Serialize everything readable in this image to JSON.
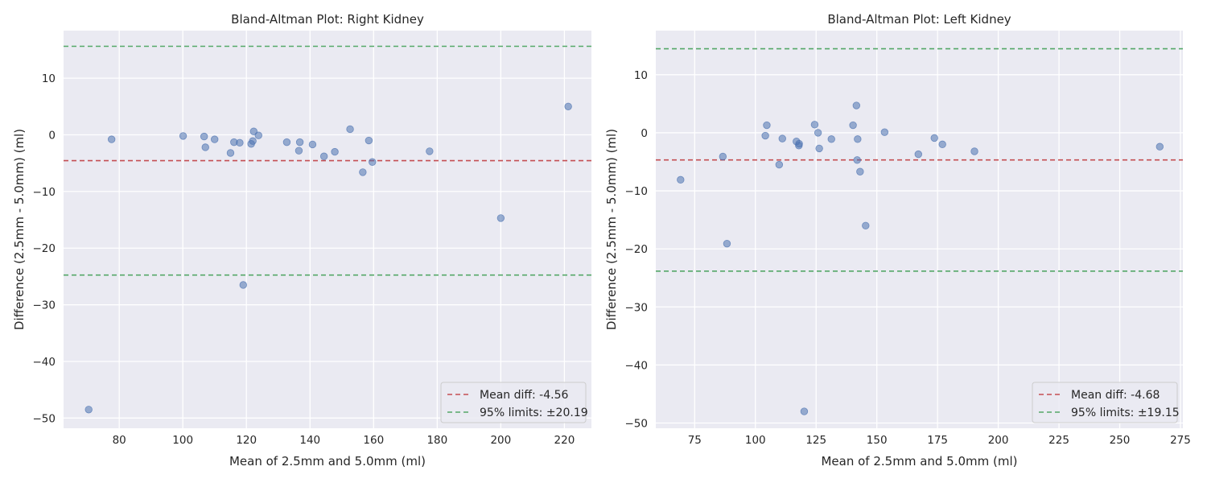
{
  "chart_data": [
    {
      "type": "scatter",
      "title": "Bland-Altman Plot: Right Kidney",
      "xlabel": "Mean of 2.5mm and 5.0mm (ml)",
      "ylabel": "Difference (2.5mm - 5.0mm) (ml)",
      "xlim": [
        62.5,
        228.5
      ],
      "ylim": [
        -51.8,
        18.4
      ],
      "xticks": [
        80,
        100,
        120,
        140,
        160,
        180,
        200,
        220
      ],
      "yticks": [
        -50,
        -40,
        -30,
        -20,
        -10,
        0,
        10
      ],
      "grid": true,
      "legend_position": "lower-right",
      "colors": {
        "points": "#4c72b0",
        "mean": "#c44e52",
        "limits": "#55a868",
        "background": "#eaeaf2",
        "grid": "#ffffff"
      },
      "mean_diff": -4.56,
      "upper_limit": 15.63,
      "lower_limit": -24.75,
      "legend": [
        "Mean diff: -4.56",
        "95% limits: ±20.19"
      ],
      "points": [
        [
          70.4,
          -48.5
        ],
        [
          77.6,
          -0.8
        ],
        [
          100.1,
          -0.2
        ],
        [
          106.7,
          -0.3
        ],
        [
          107.1,
          -2.2
        ],
        [
          110.0,
          -0.8
        ],
        [
          115.0,
          -3.2
        ],
        [
          116.1,
          -1.3
        ],
        [
          117.9,
          -1.4
        ],
        [
          119.0,
          -26.5
        ],
        [
          121.5,
          -1.6
        ],
        [
          122.0,
          -1.1
        ],
        [
          122.3,
          0.6
        ],
        [
          123.8,
          -0.1
        ],
        [
          132.7,
          -1.3
        ],
        [
          136.5,
          -2.8
        ],
        [
          136.8,
          -1.3
        ],
        [
          140.8,
          -1.7
        ],
        [
          144.4,
          -3.8
        ],
        [
          147.8,
          -3.0
        ],
        [
          152.6,
          1.0
        ],
        [
          156.6,
          -6.6
        ],
        [
          158.5,
          -1.0
        ],
        [
          159.6,
          -4.8
        ],
        [
          177.6,
          -2.9
        ],
        [
          200.0,
          -14.7
        ],
        [
          221.2,
          5.0
        ]
      ]
    },
    {
      "type": "scatter",
      "title": "Bland-Altman Plot: Left Kidney",
      "xlabel": "Mean of 2.5mm and 5.0mm (ml)",
      "ylabel": "Difference (2.5mm - 5.0mm) (ml)",
      "xlim": [
        59,
        276
      ],
      "ylim": [
        -50.9,
        17.6
      ],
      "xticks": [
        75,
        100,
        125,
        150,
        175,
        200,
        225,
        250,
        275
      ],
      "yticks": [
        -50,
        -40,
        -30,
        -20,
        -10,
        0,
        10
      ],
      "grid": true,
      "legend_position": "lower-right",
      "colors": {
        "points": "#4c72b0",
        "mean": "#c44e52",
        "limits": "#55a868",
        "background": "#eaeaf2",
        "grid": "#ffffff"
      },
      "mean_diff": -4.68,
      "upper_limit": 14.47,
      "lower_limit": -23.83,
      "legend": [
        "Mean diff: -4.68",
        "95% limits: ±19.15"
      ],
      "points": [
        [
          69.2,
          -8.1
        ],
        [
          86.6,
          -4.1
        ],
        [
          88.3,
          -19.1
        ],
        [
          104.1,
          -0.5
        ],
        [
          104.7,
          1.3
        ],
        [
          109.8,
          -5.5
        ],
        [
          111.1,
          -1.0
        ],
        [
          116.9,
          -1.5
        ],
        [
          117.9,
          -2.2
        ],
        [
          118.0,
          -1.9
        ],
        [
          120.1,
          -48.0
        ],
        [
          124.4,
          1.4
        ],
        [
          125.8,
          0.0
        ],
        [
          126.3,
          -2.7
        ],
        [
          131.3,
          -1.1
        ],
        [
          140.2,
          1.3
        ],
        [
          141.6,
          4.7
        ],
        [
          141.9,
          -4.7
        ],
        [
          142.1,
          -1.1
        ],
        [
          143.1,
          -6.7
        ],
        [
          145.4,
          -16.0
        ],
        [
          153.2,
          0.1
        ],
        [
          167.1,
          -3.7
        ],
        [
          173.7,
          -0.9
        ],
        [
          177.0,
          -2.0
        ],
        [
          190.2,
          -3.2
        ],
        [
          266.5,
          -2.4
        ]
      ]
    }
  ]
}
